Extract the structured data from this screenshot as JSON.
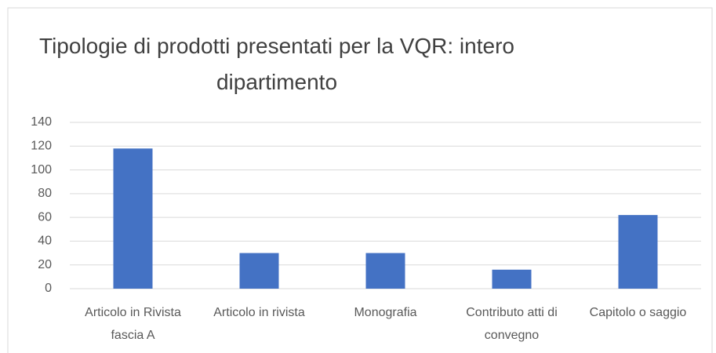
{
  "chart_data": {
    "type": "bar",
    "title": "Tipologie di prodotti presentati per la VQR: intero dipartimento",
    "categories": [
      "Articolo in Rivista fascia A",
      "Articolo in rivista",
      "Monografia",
      "Contributo atti di convegno",
      "Capitolo o saggio"
    ],
    "values": [
      118,
      30,
      30,
      16,
      62
    ],
    "color": "#4472c4",
    "ylim": [
      0,
      140
    ],
    "yticks": [
      0,
      20,
      40,
      60,
      80,
      100,
      120,
      140
    ],
    "grid": true
  }
}
